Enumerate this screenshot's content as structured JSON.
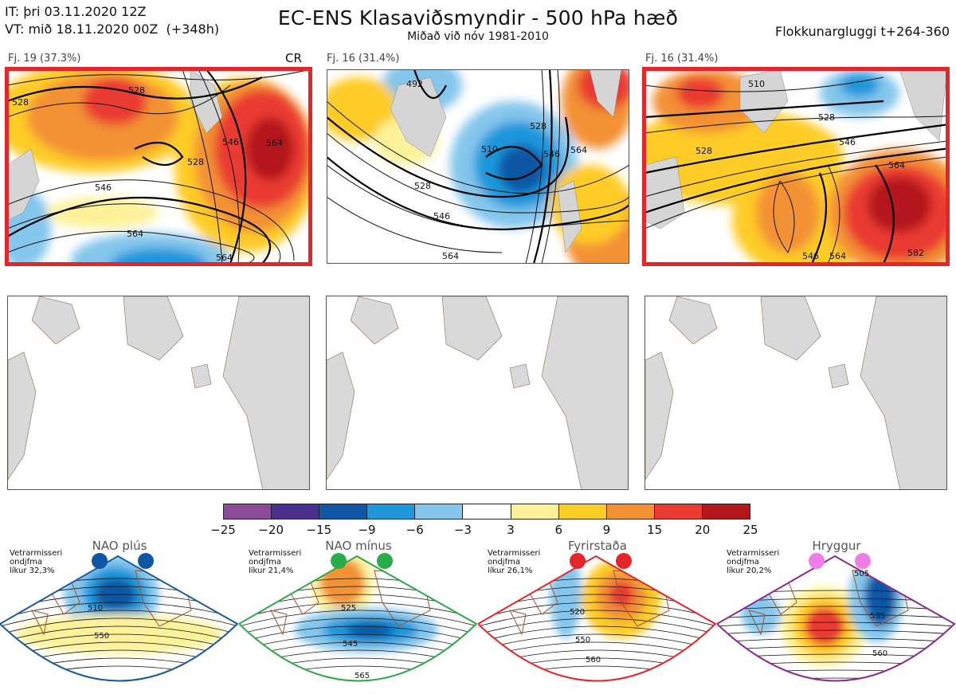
{
  "header": {
    "init_time": "IT: þri 03.11.2020 12Z",
    "valid_time": "VT: mið 18.11.2020 00Z  (+348h)",
    "title": "EC-ENS Klasaviðsmyndir - 500 hPa hæð",
    "subtitle": "Miðað við nóv 1981-2010",
    "window": "Flokkunargluggi t+264-360"
  },
  "clusters": [
    {
      "label": "Fj. 19 (37.3%)",
      "tag": "CR",
      "contours": [
        "528",
        "546",
        "564",
        "528",
        "546",
        "564",
        "528",
        "564"
      ]
    },
    {
      "label": "Fj. 16 (31.4%)",
      "tag": "",
      "contours": [
        "492",
        "510",
        "528",
        "546",
        "564",
        "528",
        "546",
        "564"
      ]
    },
    {
      "label": "Fj. 16 (31.4%)",
      "tag": "",
      "contours": [
        "510",
        "528",
        "546",
        "564",
        "528",
        "546",
        "564",
        "582"
      ]
    }
  ],
  "colorbar": {
    "colors": [
      "#8b4b9b",
      "#4a2f8f",
      "#0f57a4",
      "#1e97db",
      "#84c6ec",
      "#ffffff",
      "#fdf29a",
      "#fecc27",
      "#f39134",
      "#ea3a32",
      "#b3161b"
    ],
    "ticks": [
      "−25",
      "−20",
      "−15",
      "−9",
      "−6",
      "−3",
      "3",
      "6",
      "9",
      "15",
      "20",
      "25"
    ]
  },
  "regimes": [
    {
      "name": "NAO plús",
      "note": "Vetrarmisseri\nondjfma\nlíkur 32,3%",
      "dot_color": "#0f57a4",
      "border": "#1a5aa0",
      "contours": [
        "510",
        "550"
      ]
    },
    {
      "name": "NAO mínus",
      "note": "Vetrarmisseri\nondjfma\nlíkur 21,4%",
      "dot_color": "#27ae4a",
      "border": "#2ea84a",
      "contours": [
        "525",
        "545",
        "565"
      ]
    },
    {
      "name": "Fyrirstaða",
      "note": "Vetrarmisseri\nondjfma\nlíkur 26,1%",
      "dot_color": "#e4262a",
      "border": "#e4262a",
      "contours": [
        "520",
        "550",
        "560"
      ]
    },
    {
      "name": "Hryggur",
      "note": "Vetrarmisseri\nondjfma\nlíkur 20,2%",
      "dot_color": "#ee7de6",
      "border": "#8c2b8c",
      "contours": [
        "505",
        "535",
        "560"
      ]
    }
  ]
}
